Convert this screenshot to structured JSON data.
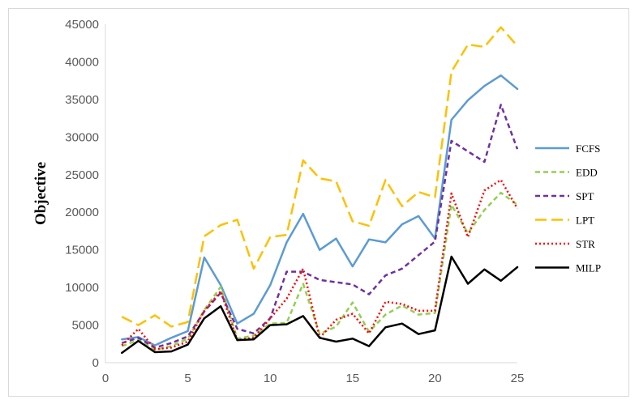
{
  "chart_data": {
    "type": "line",
    "title": "",
    "xlabel": "",
    "ylabel": "Objective",
    "xlim": [
      0,
      25
    ],
    "ylim": [
      0,
      45000
    ],
    "xticks": [
      0,
      5,
      10,
      15,
      20,
      25
    ],
    "yticks": [
      0,
      5000,
      10000,
      15000,
      20000,
      25000,
      30000,
      35000,
      40000,
      45000
    ],
    "grid": false,
    "legend_position": "right",
    "x": [
      1,
      2,
      3,
      4,
      5,
      6,
      7,
      8,
      9,
      10,
      11,
      12,
      13,
      14,
      15,
      16,
      17,
      18,
      19,
      20,
      21,
      22,
      23,
      24,
      25
    ],
    "series": [
      {
        "name": "FCFS",
        "color": "#5b9bd5",
        "dash": "solid",
        "values": [
          3100,
          3400,
          2300,
          3300,
          4200,
          14000,
          10300,
          5200,
          6500,
          10300,
          16000,
          19800,
          15000,
          16500,
          12800,
          16400,
          16000,
          18400,
          19500,
          16500,
          32300,
          34900,
          36800,
          38200,
          36400
        ]
      },
      {
        "name": "EDD",
        "color": "#92d050",
        "dash": "dashed",
        "values": [
          2200,
          3000,
          1700,
          2200,
          3200,
          7000,
          10100,
          3200,
          3600,
          5200,
          5300,
          10500,
          3800,
          4800,
          8000,
          4100,
          6400,
          7600,
          6400,
          6600,
          21000,
          17200,
          20300,
          22600,
          21000
        ]
      },
      {
        "name": "SPT",
        "color": "#7030a0",
        "dash": "dashed",
        "values": [
          2600,
          3300,
          2000,
          2600,
          3500,
          6800,
          9300,
          4500,
          3900,
          5900,
          12100,
          12100,
          11000,
          10700,
          10400,
          9100,
          11600,
          12500,
          14300,
          16100,
          29500,
          28100,
          26700,
          34300,
          28400
        ]
      },
      {
        "name": "LPT",
        "color": "#ffc000",
        "dash": "longdash",
        "values": [
          6100,
          5000,
          6300,
          4800,
          5400,
          16800,
          18300,
          19000,
          12500,
          16700,
          17000,
          26900,
          24500,
          24100,
          18800,
          18200,
          24300,
          20800,
          22700,
          22000,
          38700,
          42300,
          42000,
          44600,
          42100
        ]
      },
      {
        "name": "STR",
        "color": "#ff0000",
        "dash": "dotted",
        "values": [
          2300,
          4500,
          1800,
          2000,
          2800,
          6900,
          9500,
          3000,
          3300,
          5900,
          8500,
          12500,
          3300,
          5700,
          6500,
          3900,
          8100,
          7800,
          6900,
          6900,
          22500,
          16700,
          22900,
          24300,
          20500
        ]
      },
      {
        "name": "MILP",
        "color": "#000000",
        "dash": "solid",
        "values": [
          1300,
          2900,
          1400,
          1500,
          2400,
          5900,
          7500,
          3000,
          3100,
          5000,
          5100,
          6200,
          3300,
          2800,
          3200,
          2200,
          4700,
          5200,
          3800,
          4300,
          14100,
          10500,
          12400,
          10900,
          12700
        ]
      }
    ]
  }
}
